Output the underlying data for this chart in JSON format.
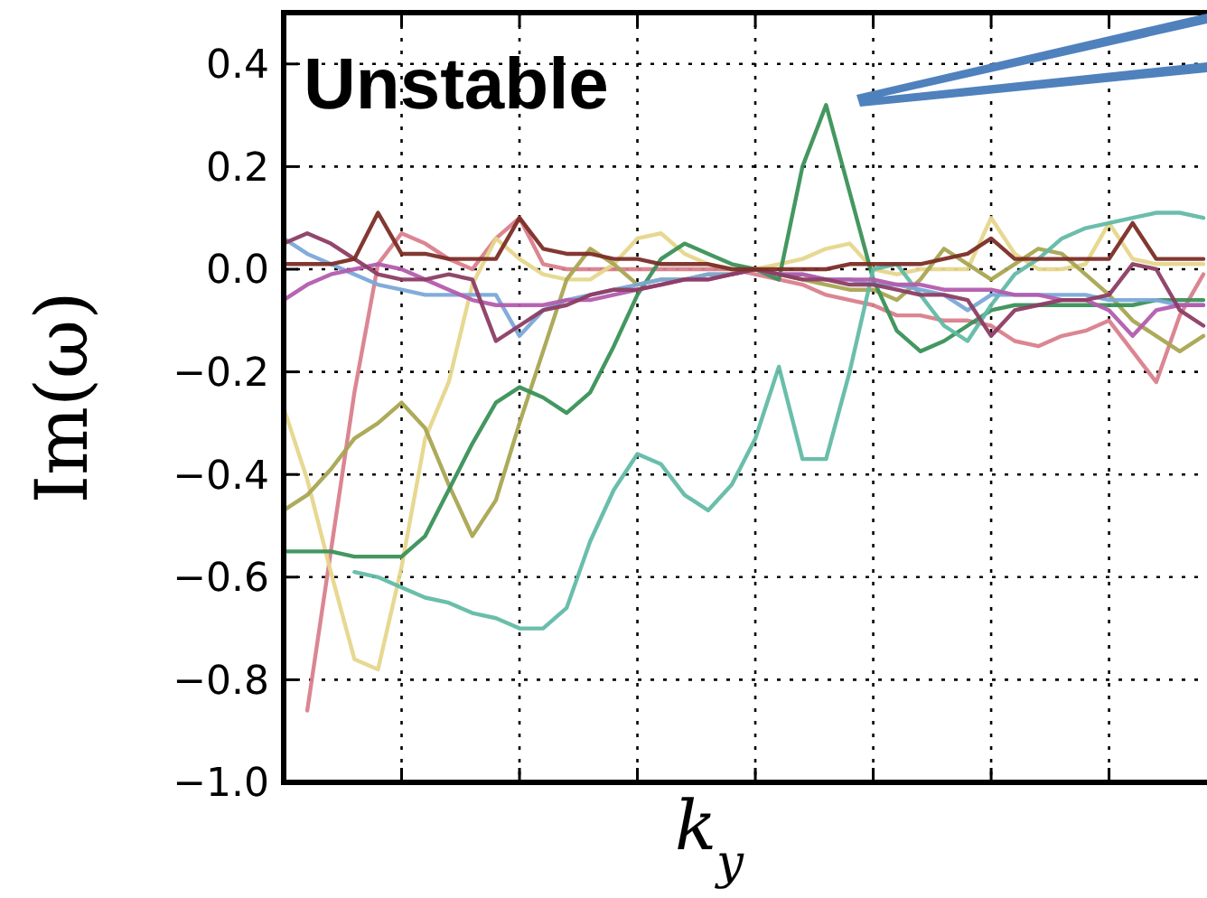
{
  "chart_data": {
    "type": "line",
    "xlabel": "k$_{y}$",
    "ylabel": "Im(ω)",
    "annotations": [
      "Unstable"
    ],
    "categories": [
      null,
      null,
      null,
      null,
      null,
      null,
      null,
      null,
      null,
      null,
      null,
      null,
      null,
      null,
      null,
      null,
      null,
      null,
      null,
      null,
      null,
      null,
      null,
      null,
      null,
      null,
      null,
      null,
      null,
      null,
      null,
      null,
      null,
      null,
      null,
      null,
      null,
      null,
      null,
      null
    ],
    "ylim": [
      -1.0,
      0.5
    ],
    "yticks": [
      {
        "value": -1.0,
        "label": "−1.0"
      },
      {
        "value": -0.8,
        "label": "−0.8"
      },
      {
        "value": -0.6,
        "label": "−0.6"
      },
      {
        "value": -0.4,
        "label": "−0.4"
      },
      {
        "value": -0.2,
        "label": "−0.2"
      },
      {
        "value": 0.0,
        "label": "0.0"
      },
      {
        "value": 0.2,
        "label": "0.2"
      },
      {
        "value": 0.4,
        "label": "0.4"
      }
    ],
    "grid": true,
    "marker": "none",
    "line_style": "solid",
    "series": [
      {
        "color": "#d9808c",
        "values": [
          null,
          -0.86,
          -0.55,
          -0.24,
          0.01,
          0.07,
          0.05,
          0.02,
          0.0,
          0.06,
          0.1,
          0.01,
          0.0,
          0.0,
          0.0,
          0.0,
          0.0,
          0.0,
          0.0,
          0.0,
          -0.01,
          -0.02,
          -0.03,
          -0.05,
          -0.06,
          -0.07,
          -0.09,
          -0.09,
          -0.1,
          -0.1,
          -0.11,
          -0.14,
          -0.15,
          -0.13,
          -0.12,
          -0.1,
          -0.16,
          -0.22,
          -0.09,
          -0.01
        ]
      },
      {
        "color": "#e6d68c",
        "values": [
          -0.27,
          -0.41,
          -0.59,
          -0.76,
          -0.78,
          -0.58,
          -0.33,
          -0.22,
          -0.03,
          0.06,
          0.02,
          -0.01,
          -0.02,
          -0.02,
          0.01,
          0.06,
          0.07,
          0.03,
          0.01,
          0.0,
          0.0,
          0.01,
          0.02,
          0.04,
          0.05,
          0.0,
          -0.01,
          0.0,
          0.0,
          0.0,
          0.1,
          0.03,
          0.0,
          0.0,
          0.01,
          0.09,
          0.02,
          0.01,
          0.01,
          0.01
        ]
      },
      {
        "color": "#a9a552",
        "values": [
          -0.47,
          -0.44,
          -0.39,
          -0.33,
          -0.3,
          -0.26,
          -0.31,
          -0.42,
          -0.52,
          -0.45,
          -0.3,
          -0.16,
          -0.02,
          0.04,
          0.01,
          -0.03,
          -0.02,
          -0.02,
          -0.01,
          -0.01,
          0.0,
          -0.01,
          -0.02,
          -0.03,
          -0.04,
          -0.04,
          -0.06,
          -0.02,
          0.04,
          0.01,
          -0.02,
          0.01,
          0.04,
          0.03,
          -0.01,
          -0.05,
          -0.1,
          -0.13,
          -0.16,
          -0.13
        ]
      },
      {
        "color": "#3a9157",
        "values": [
          -0.55,
          -0.55,
          -0.55,
          -0.56,
          -0.56,
          -0.56,
          -0.52,
          -0.43,
          -0.34,
          -0.26,
          -0.23,
          -0.25,
          -0.28,
          -0.24,
          -0.15,
          -0.05,
          0.02,
          0.05,
          0.03,
          0.01,
          0.0,
          -0.02,
          0.2,
          0.32,
          0.15,
          -0.02,
          -0.12,
          -0.16,
          -0.14,
          -0.11,
          -0.08,
          -0.07,
          -0.07,
          -0.07,
          -0.07,
          -0.07,
          -0.07,
          -0.06,
          -0.06,
          -0.06
        ]
      },
      {
        "color": "#62bba6",
        "values": [
          null,
          null,
          null,
          -0.59,
          -0.6,
          -0.62,
          -0.64,
          -0.65,
          -0.67,
          -0.68,
          -0.7,
          -0.7,
          -0.66,
          -0.53,
          -0.43,
          -0.36,
          -0.38,
          -0.44,
          -0.47,
          -0.42,
          -0.33,
          -0.19,
          -0.37,
          -0.37,
          -0.2,
          0.0,
          0.01,
          -0.05,
          -0.11,
          -0.14,
          -0.07,
          -0.01,
          0.02,
          0.06,
          0.08,
          0.09,
          0.1,
          0.11,
          0.11,
          0.1
        ]
      },
      {
        "color": "#7ba8d8",
        "values": [
          0.06,
          0.03,
          0.01,
          -0.01,
          -0.03,
          -0.04,
          -0.05,
          -0.05,
          -0.05,
          -0.05,
          -0.13,
          -0.08,
          -0.06,
          -0.05,
          -0.04,
          -0.03,
          -0.02,
          -0.02,
          -0.01,
          -0.01,
          0.0,
          -0.01,
          -0.01,
          -0.02,
          -0.02,
          -0.03,
          -0.03,
          -0.04,
          -0.05,
          -0.08,
          -0.05,
          -0.05,
          -0.05,
          -0.05,
          -0.05,
          -0.06,
          -0.06,
          -0.06,
          -0.07,
          -0.07
        ]
      },
      {
        "color": "#b35cad",
        "values": [
          -0.06,
          -0.03,
          -0.01,
          0.0,
          0.01,
          0.0,
          -0.02,
          -0.04,
          -0.06,
          -0.07,
          -0.07,
          -0.07,
          -0.06,
          -0.06,
          -0.05,
          -0.04,
          -0.03,
          -0.02,
          -0.02,
          -0.01,
          0.0,
          -0.01,
          -0.01,
          -0.02,
          -0.02,
          -0.02,
          -0.03,
          -0.03,
          -0.04,
          -0.04,
          -0.04,
          -0.05,
          -0.05,
          -0.06,
          -0.06,
          -0.08,
          -0.13,
          -0.08,
          -0.07,
          -0.07
        ]
      },
      {
        "color": "#8c3d64",
        "values": [
          0.05,
          0.07,
          0.05,
          0.02,
          -0.01,
          -0.02,
          -0.02,
          -0.01,
          -0.02,
          -0.14,
          -0.11,
          -0.08,
          -0.07,
          -0.05,
          -0.04,
          -0.04,
          -0.03,
          -0.02,
          -0.02,
          -0.01,
          0.0,
          -0.01,
          -0.02,
          -0.02,
          -0.03,
          -0.03,
          -0.04,
          -0.05,
          -0.05,
          -0.06,
          -0.13,
          -0.08,
          -0.07,
          -0.06,
          -0.06,
          -0.05,
          0.01,
          0.0,
          -0.08,
          -0.11
        ]
      },
      {
        "color": "#7b2d26",
        "values": [
          0.01,
          0.01,
          0.01,
          0.02,
          0.11,
          0.03,
          0.03,
          0.02,
          0.02,
          0.02,
          0.1,
          0.04,
          0.03,
          0.03,
          0.02,
          0.02,
          0.01,
          0.01,
          0.01,
          0.0,
          0.0,
          0.0,
          0.0,
          0.0,
          0.01,
          0.01,
          0.01,
          0.01,
          0.02,
          0.03,
          0.06,
          0.02,
          0.02,
          0.02,
          0.02,
          0.02,
          0.09,
          0.02,
          0.02,
          0.02
        ]
      }
    ]
  }
}
